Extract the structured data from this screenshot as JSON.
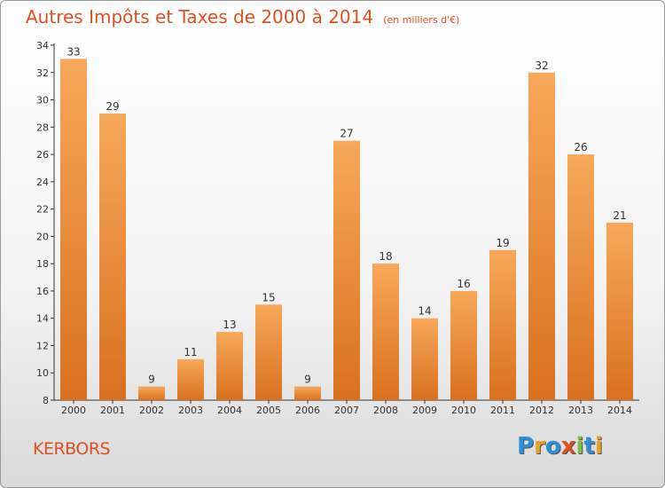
{
  "header": {
    "title": "Autres Impôts et Taxes de 2000 à 2014",
    "subtitle": "(en milliers d'€)"
  },
  "footer": {
    "commune": "KERBORS",
    "brand": "Proxiti"
  },
  "colors": {
    "title": "#e0501e",
    "bar_light": "#f7a85a",
    "bar_dark": "#d9711f",
    "axis": "#333333"
  },
  "chart_data": {
    "type": "bar",
    "categories": [
      "2000",
      "2001",
      "2002",
      "2003",
      "2004",
      "2005",
      "2006",
      "2007",
      "2008",
      "2009",
      "2010",
      "2011",
      "2012",
      "2013",
      "2014"
    ],
    "values": [
      33,
      29,
      9,
      11,
      13,
      15,
      9,
      27,
      18,
      14,
      16,
      19,
      32,
      26,
      21
    ],
    "ylim": [
      8,
      34
    ],
    "yticks": [
      8,
      10,
      12,
      14,
      16,
      18,
      20,
      22,
      24,
      26,
      28,
      30,
      32,
      34
    ],
    "grid": false,
    "data_labels": true
  }
}
